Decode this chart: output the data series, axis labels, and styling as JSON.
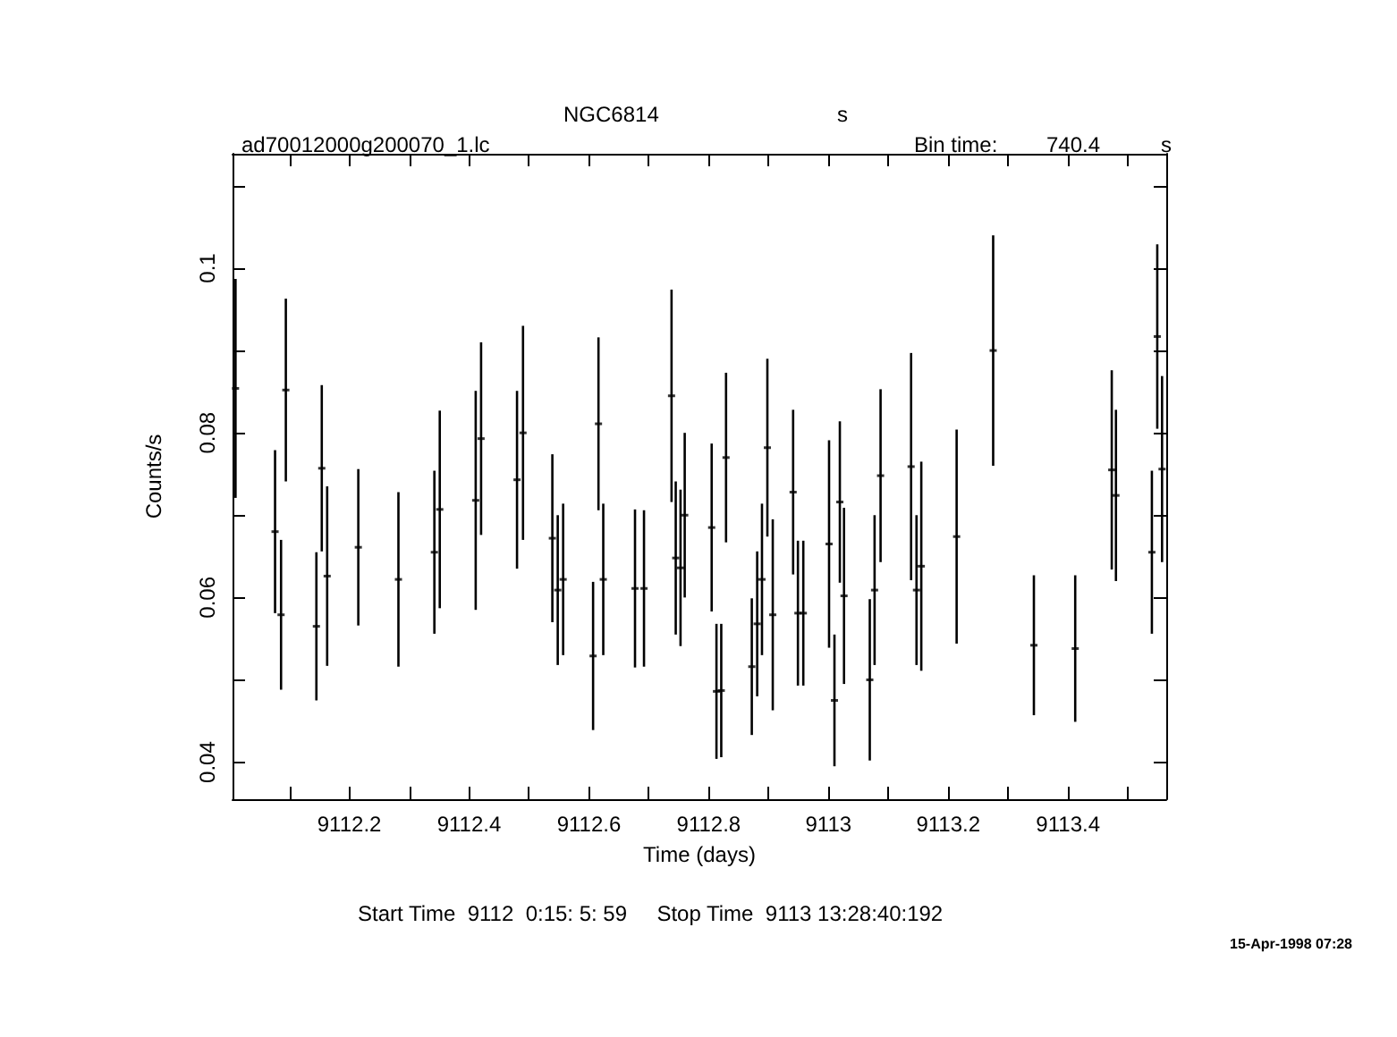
{
  "chart_data": {
    "type": "scatter",
    "title": "NGC6814",
    "subtitle": "ad70012000g200070_1.lc",
    "xlabel": "Time (days)",
    "ylabel": "Counts/s",
    "annotations": [
      "s",
      "Bin time:",
      "740.4",
      "s",
      "Start Time  9112  0:15: 5: 59     Stop Time  9113 13:28:40:192",
      "15-Apr-1998 07:28"
    ],
    "grid": false,
    "xlim": [
      9112.005,
      9113.564
    ],
    "xticks": [
      {
        "value": 9112.1,
        "label": null
      },
      9112.2,
      {
        "value": 9112.3,
        "label": null
      },
      9112.4,
      {
        "value": 9112.5,
        "label": null
      },
      9112.6,
      {
        "value": 9112.7,
        "label": null
      },
      9112.8,
      {
        "value": 9112.9,
        "label": null
      },
      9113,
      {
        "value": 9113.1,
        "label": null
      },
      9113.2,
      {
        "value": 9113.3,
        "label": null
      },
      9113.4,
      {
        "value": 9113.5,
        "label": null
      }
    ],
    "ylim": [
      0.0355,
      0.1139
    ],
    "yticks": [
      0.04,
      {
        "value": 0.05,
        "label": null
      },
      0.06,
      {
        "value": 0.07,
        "label": null
      },
      0.08,
      {
        "value": 0.09,
        "label": null
      },
      0.1,
      {
        "value": 0.11,
        "label": null
      }
    ],
    "series": [
      {
        "color": "#000000",
        "x": [
          9112.01,
          9112.076,
          9112.086,
          9112.094,
          9112.145,
          9112.154,
          9112.163,
          9112.215,
          9112.282,
          9112.342,
          9112.351,
          9112.411,
          9112.42,
          9112.48,
          9112.49,
          9112.539,
          9112.548,
          9112.557,
          9112.607,
          9112.616,
          9112.624,
          9112.677,
          9112.692,
          9112.738,
          9112.745,
          9112.753,
          9112.76,
          9112.805,
          9112.813,
          9112.821,
          9112.829,
          9112.872,
          9112.881,
          9112.889,
          9112.898,
          9112.907,
          9112.941,
          9112.949,
          9112.958,
          9113.001,
          9113.01,
          9113.019,
          9113.026,
          9113.069,
          9113.077,
          9113.087,
          9113.138,
          9113.147,
          9113.155,
          9113.214,
          9113.275,
          9113.343,
          9113.412,
          9113.473,
          9113.48,
          9113.54,
          9113.549,
          9113.557
        ],
        "values": [
          0.0854,
          0.068,
          0.0579,
          0.0852,
          0.0565,
          0.0757,
          0.0626,
          0.0661,
          0.0622,
          0.0655,
          0.0707,
          0.0718,
          0.0793,
          0.0743,
          0.08,
          0.0672,
          0.0609,
          0.0622,
          0.0529,
          0.0811,
          0.0622,
          0.0611,
          0.0611,
          0.0845,
          0.0648,
          0.0636,
          0.07,
          0.0685,
          0.0486,
          0.0487,
          0.077,
          0.0516,
          0.0568,
          0.0622,
          0.0782,
          0.0579,
          0.0728,
          0.0581,
          0.0581,
          0.0665,
          0.0475,
          0.0716,
          0.0602,
          0.05,
          0.0609,
          0.0748,
          0.0759,
          0.0609,
          0.0638,
          0.0674,
          0.09,
          0.0542,
          0.0538,
          0.0755,
          0.0724,
          0.0655,
          0.0917,
          0.0756
        ],
        "errors": [
          0.0133,
          0.0099,
          0.0091,
          0.0111,
          0.009,
          0.0101,
          0.0109,
          0.0095,
          0.0106,
          0.0099,
          0.012,
          0.0133,
          0.0117,
          0.0108,
          0.013,
          0.0102,
          0.0091,
          0.0092,
          0.009,
          0.0105,
          0.0092,
          0.0096,
          0.0095,
          0.0129,
          0.0093,
          0.0095,
          0.01,
          0.0102,
          0.0082,
          0.0081,
          0.0103,
          0.0083,
          0.0088,
          0.0092,
          0.0108,
          0.0116,
          0.01,
          0.0088,
          0.0088,
          0.0126,
          0.008,
          0.0098,
          0.0107,
          0.0098,
          0.0091,
          0.0105,
          0.0138,
          0.0091,
          0.0127,
          0.013,
          0.014,
          0.0085,
          0.0089,
          0.0121,
          0.0104,
          0.0099,
          0.0112,
          0.0113
        ],
        "marker": "square"
      }
    ]
  }
}
